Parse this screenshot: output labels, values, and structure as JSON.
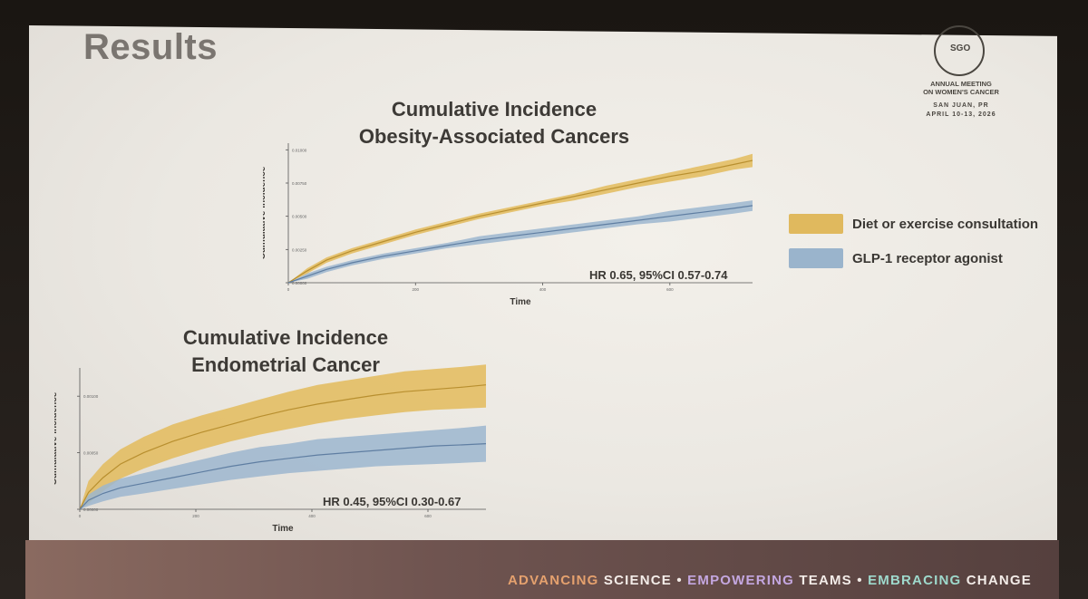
{
  "slide": {
    "title": "Results",
    "logo": {
      "abbr": "SGO",
      "line1": "ANNUAL MEETING",
      "line2": "ON WOMEN'S CANCER",
      "location": "SAN JUAN, PR",
      "dates": "APRIL 10-13, 2026"
    },
    "legend": [
      {
        "label": "Diet or exercise consultation",
        "color": "#e0b95e"
      },
      {
        "label": "GLP-1 receptor agonist",
        "color": "#9ab4cc"
      }
    ],
    "tagline": [
      {
        "text": "ADVANCING",
        "tone": "orange"
      },
      {
        "text": "SCIENCE",
        "tone": "white"
      },
      {
        "text": "•",
        "tone": "white"
      },
      {
        "text": "EMPOWERING",
        "tone": "purple"
      },
      {
        "text": "TEAMS",
        "tone": "white"
      },
      {
        "text": "•",
        "tone": "white"
      },
      {
        "text": "EMBRACING",
        "tone": "teal"
      },
      {
        "text": "CHANGE",
        "tone": "white"
      }
    ]
  },
  "chart_data": [
    {
      "type": "area",
      "title_line1": "Cumulative Incidence",
      "title_line2": "Obesity-Associated Cancers",
      "xlabel": "Time",
      "ylabel": "Cumulative incidence",
      "xticks": [
        0,
        200,
        400,
        600
      ],
      "yticks": [
        0,
        0.0025,
        0.005,
        0.0075,
        0.01
      ],
      "xtick_labels": [
        "0",
        "200",
        "400",
        "600"
      ],
      "ytick_labels": [
        "0.00000",
        "0.00250",
        "0.00500",
        "0.00750",
        "0.01000"
      ],
      "xlim": [
        0,
        730
      ],
      "ylim": [
        0,
        0.0105
      ],
      "annotation": "HR 0.65, 95%CI 0.57-0.74",
      "series": [
        {
          "name": "Diet or exercise consultation",
          "x": [
            0,
            30,
            60,
            100,
            150,
            200,
            250,
            300,
            350,
            400,
            450,
            500,
            550,
            600,
            650,
            700,
            730
          ],
          "y": [
            0,
            0.0009,
            0.0017,
            0.0024,
            0.0031,
            0.0038,
            0.0044,
            0.005,
            0.0055,
            0.006,
            0.0065,
            0.007,
            0.0075,
            0.008,
            0.0084,
            0.0089,
            0.0092
          ],
          "lower": [
            0,
            0.0007,
            0.0015,
            0.0022,
            0.0029,
            0.0036,
            0.0042,
            0.0048,
            0.0053,
            0.0058,
            0.0062,
            0.0067,
            0.0072,
            0.0076,
            0.008,
            0.0085,
            0.0087
          ],
          "upper": [
            0,
            0.0011,
            0.0019,
            0.0026,
            0.0033,
            0.004,
            0.0046,
            0.0052,
            0.0057,
            0.0062,
            0.0067,
            0.0073,
            0.0078,
            0.0083,
            0.0088,
            0.0093,
            0.0097
          ]
        },
        {
          "name": "GLP-1 receptor agonist",
          "x": [
            0,
            30,
            60,
            100,
            150,
            200,
            250,
            300,
            350,
            400,
            450,
            500,
            550,
            600,
            650,
            700,
            730
          ],
          "y": [
            0,
            0.0005,
            0.001,
            0.0015,
            0.002,
            0.0024,
            0.0028,
            0.0032,
            0.0035,
            0.0038,
            0.0041,
            0.0044,
            0.0047,
            0.005,
            0.0053,
            0.0056,
            0.0058
          ],
          "lower": [
            0,
            0.0003,
            0.0008,
            0.0013,
            0.0018,
            0.0022,
            0.0026,
            0.0029,
            0.0032,
            0.0035,
            0.0038,
            0.0041,
            0.0044,
            0.0046,
            0.0049,
            0.0052,
            0.0054
          ],
          "upper": [
            0,
            0.0007,
            0.0012,
            0.0017,
            0.0022,
            0.0026,
            0.003,
            0.0035,
            0.0038,
            0.0041,
            0.0044,
            0.0047,
            0.005,
            0.0054,
            0.0057,
            0.006,
            0.0062
          ]
        }
      ]
    },
    {
      "type": "area",
      "title_line1": "Cumulative Incidence",
      "title_line2": "Endometrial Cancer",
      "xlabel": "Time",
      "ylabel": "Cumulative incidence",
      "xticks": [
        0,
        200,
        400,
        600
      ],
      "yticks": [
        0,
        0.0005,
        0.001
      ],
      "xtick_labels": [
        "0",
        "200",
        "400",
        "600"
      ],
      "ytick_labels": [
        "0.00000",
        "0.00050",
        "0.00100"
      ],
      "xlim": [
        0,
        700
      ],
      "ylim": [
        0,
        0.00125
      ],
      "annotation": "HR 0.45, 95%CI 0.30-0.67",
      "series": [
        {
          "name": "Diet or exercise consultation",
          "x": [
            0,
            15,
            40,
            70,
            110,
            160,
            210,
            260,
            310,
            360,
            410,
            460,
            510,
            560,
            610,
            660,
            700
          ],
          "y": [
            0,
            0.00015,
            0.00028,
            0.0004,
            0.0005,
            0.0006,
            0.00068,
            0.00075,
            0.00082,
            0.00088,
            0.00093,
            0.00097,
            0.00101,
            0.00104,
            0.00106,
            0.00108,
            0.0011
          ],
          "lower": [
            0,
            5e-05,
            0.00016,
            0.00027,
            0.00036,
            0.00045,
            0.00053,
            0.0006,
            0.00066,
            0.00071,
            0.00076,
            0.0008,
            0.00083,
            0.00086,
            0.00088,
            0.00089,
            0.0009
          ],
          "upper": [
            0,
            0.00025,
            0.0004,
            0.00053,
            0.00064,
            0.00075,
            0.00083,
            0.0009,
            0.00097,
            0.00104,
            0.0011,
            0.00114,
            0.00118,
            0.00122,
            0.00124,
            0.00126,
            0.00128
          ]
        },
        {
          "name": "GLP-1 receptor agonist",
          "x": [
            0,
            15,
            40,
            70,
            110,
            160,
            210,
            260,
            310,
            360,
            410,
            460,
            510,
            560,
            610,
            660,
            700
          ],
          "y": [
            0,
            8e-05,
            0.00014,
            0.00019,
            0.00023,
            0.00028,
            0.00033,
            0.00038,
            0.00042,
            0.00045,
            0.00048,
            0.0005,
            0.00052,
            0.00054,
            0.00056,
            0.00057,
            0.00058
          ],
          "lower": [
            0,
            3e-05,
            7e-05,
            0.00011,
            0.00014,
            0.00018,
            0.00022,
            0.00026,
            0.00029,
            0.00032,
            0.00034,
            0.00036,
            0.00038,
            0.00039,
            0.0004,
            0.00041,
            0.00042
          ],
          "upper": [
            0,
            0.00013,
            0.00021,
            0.00027,
            0.00032,
            0.00038,
            0.00044,
            0.0005,
            0.00055,
            0.00058,
            0.00062,
            0.00064,
            0.00066,
            0.00068,
            0.0007,
            0.00072,
            0.00074
          ]
        }
      ]
    }
  ]
}
